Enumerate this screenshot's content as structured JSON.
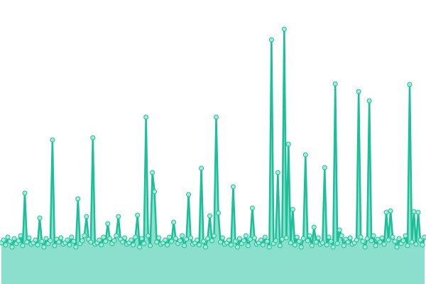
{
  "chart_data": {
    "type": "area",
    "series": [
      {
        "color": "#1dbf98",
        "fill": "#8ae0cd",
        "marker_fill": "#a8ead9",
        "values": [
          58,
          62,
          55,
          66,
          60,
          52,
          64,
          57,
          61,
          68,
          54,
          128,
          59,
          65,
          56,
          58,
          62,
          55,
          93,
          60,
          52,
          64,
          57,
          61,
          203,
          54,
          63,
          59,
          65,
          56,
          58,
          62,
          55,
          66,
          60,
          52,
          120,
          57,
          61,
          68,
          95,
          63,
          59,
          206,
          56,
          58,
          62,
          55,
          66,
          60,
          85,
          64,
          57,
          61,
          68,
          95,
          63,
          59,
          65,
          56,
          58,
          62,
          55,
          66,
          97,
          52,
          64,
          57,
          235,
          68,
          54,
          157,
          130,
          59,
          65,
          56,
          58,
          62,
          55,
          66,
          60,
          87,
          64,
          57,
          61,
          68,
          54,
          63,
          126,
          65,
          56,
          58,
          62,
          55,
          163,
          60,
          52,
          64,
          96,
          61,
          68,
          235,
          100,
          59,
          65,
          56,
          58,
          62,
          55,
          137,
          60,
          52,
          64,
          57,
          61,
          68,
          54,
          63,
          107,
          65,
          56,
          58,
          62,
          55,
          66,
          60,
          52,
          344,
          57,
          61,
          157,
          54,
          63,
          359,
          65,
          197,
          58,
          105,
          55,
          66,
          60,
          52,
          64,
          182,
          61,
          68,
          54,
          80,
          59,
          65,
          56,
          58,
          164,
          55,
          66,
          60,
          52,
          282,
          57,
          76,
          68,
          54,
          63,
          59,
          65,
          56,
          58,
          62,
          271,
          66,
          60,
          52,
          64,
          258,
          61,
          68,
          54,
          63,
          59,
          65,
          56,
          101,
          62,
          103,
          66,
          60,
          52,
          64,
          57,
          61,
          68,
          54,
          281,
          59,
          102,
          56,
          101,
          62,
          55,
          66
        ]
      }
    ],
    "ylim": [
      0,
      400
    ]
  }
}
